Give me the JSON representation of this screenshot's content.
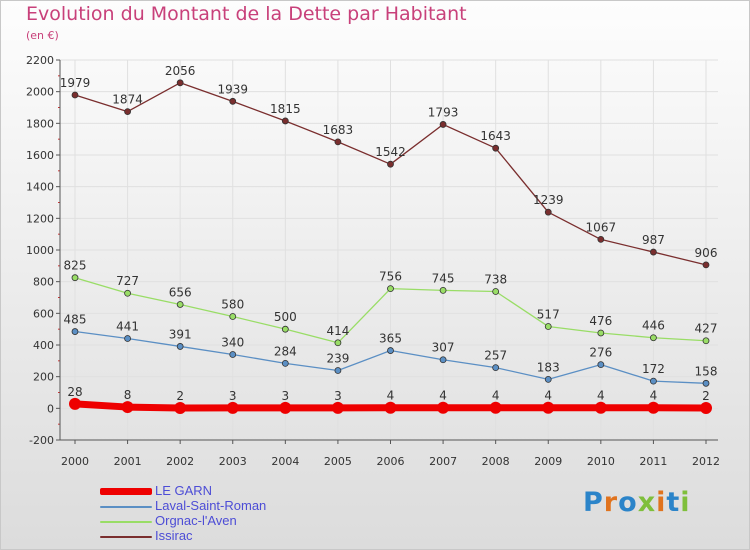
{
  "header": {
    "title": "Evolution du Montant de la Dette par Habitant",
    "subtitle": "(en €)"
  },
  "logo": {
    "text": "Proxiti",
    "colors": [
      "#2b84c9",
      "#e0731e",
      "#2b84c9",
      "#7fbf3b",
      "#e0731e",
      "#2b84c9",
      "#7fbf3b"
    ]
  },
  "colors": {
    "title": "#c8407a",
    "legend_text": "#4d4dd6",
    "grid": "#e0e0e0",
    "axis": "#555555"
  },
  "chart_data": {
    "type": "line",
    "title": "Evolution du Montant de la Dette par Habitant",
    "subtitle": "(en €)",
    "xlabel": "",
    "ylabel": "",
    "x": [
      "2000",
      "2001",
      "2002",
      "2003",
      "2004",
      "2005",
      "2006",
      "2007",
      "2008",
      "2009",
      "2010",
      "2011",
      "2012"
    ],
    "ylim": [
      -200,
      2200
    ],
    "yticks": [
      -200,
      0,
      200,
      400,
      600,
      800,
      1000,
      1200,
      1400,
      1600,
      1800,
      2000,
      2200
    ],
    "grid": true,
    "legend_position": "bottom-left",
    "series": [
      {
        "name": "LE GARN",
        "color": "#ee0000",
        "emphasis": true,
        "values": [
          28,
          8,
          2,
          3,
          3,
          3,
          4,
          4,
          4,
          4,
          4,
          4,
          2
        ]
      },
      {
        "name": "Laval-Saint-Roman",
        "color": "#5b8fc4",
        "emphasis": false,
        "values": [
          485,
          441,
          391,
          340,
          284,
          239,
          365,
          307,
          257,
          183,
          276,
          172,
          158
        ]
      },
      {
        "name": "Orgnac-l'Aven",
        "color": "#99dd66",
        "emphasis": false,
        "values": [
          825,
          727,
          656,
          580,
          500,
          414,
          756,
          745,
          738,
          517,
          476,
          446,
          427
        ]
      },
      {
        "name": "Issirac",
        "color": "#7a2e2e",
        "emphasis": false,
        "values": [
          1979,
          1874,
          2056,
          1939,
          1815,
          1683,
          1542,
          1793,
          1643,
          1239,
          1067,
          987,
          906
        ]
      }
    ]
  }
}
